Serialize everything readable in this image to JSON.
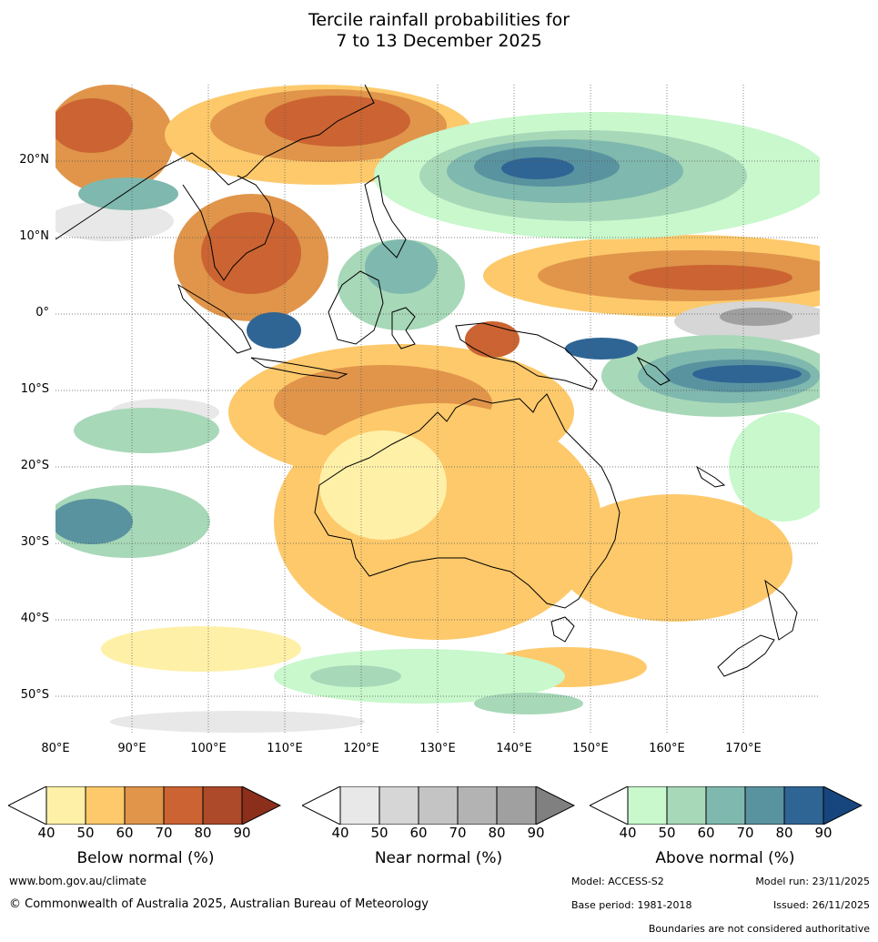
{
  "title": {
    "line1": "Tercile rainfall probabilities for",
    "line2": "7 to 13 December 2025"
  },
  "map": {
    "lat_labels": [
      "20°N",
      "10°N",
      "0°",
      "10°S",
      "20°S",
      "30°S",
      "40°S",
      "50°S"
    ],
    "lon_labels": [
      "80°E",
      "90°E",
      "100°E",
      "110°E",
      "120°E",
      "130°E",
      "140°E",
      "150°E",
      "160°E",
      "170°E"
    ],
    "extent": {
      "lon_min": 80,
      "lon_max": 180,
      "lat_min": -55,
      "lat_max": 30
    },
    "ocean_color": "#ffffff",
    "coast_color": "#000000"
  },
  "colorbars": [
    {
      "label": "Below normal (%)",
      "ticks": [
        "40",
        "50",
        "60",
        "70",
        "80",
        "90"
      ],
      "colors": [
        "#fff0a8",
        "#fdc96b",
        "#e0954a",
        "#cb6432",
        "#ad4a2a"
      ],
      "over": "#8b2e1c"
    },
    {
      "label": "Near normal (%)",
      "ticks": [
        "40",
        "50",
        "60",
        "70",
        "80",
        "90"
      ],
      "colors": [
        "#e8e8e8",
        "#d6d6d6",
        "#c4c4c4",
        "#b3b3b3",
        "#a0a0a0"
      ],
      "over": "#808080"
    },
    {
      "label": "Above normal (%)",
      "ticks": [
        "40",
        "50",
        "60",
        "70",
        "80",
        "90"
      ],
      "colors": [
        "#c8f8cc",
        "#a7d8b8",
        "#7fb8ae",
        "#5a93a0",
        "#2f6595"
      ],
      "over": "#17467f"
    }
  ],
  "footer": {
    "website": "www.bom.gov.au/climate",
    "copyright": "© Commonwealth of Australia 2025, Australian Bureau of Meteorology",
    "model": "Model: ACCESS-S2",
    "model_run": "Model run: 23/11/2025",
    "base_period": "Base period: 1981-2018",
    "issued": "Issued: 26/11/2025",
    "disclaimer": "Boundaries are not considered authoritative"
  }
}
